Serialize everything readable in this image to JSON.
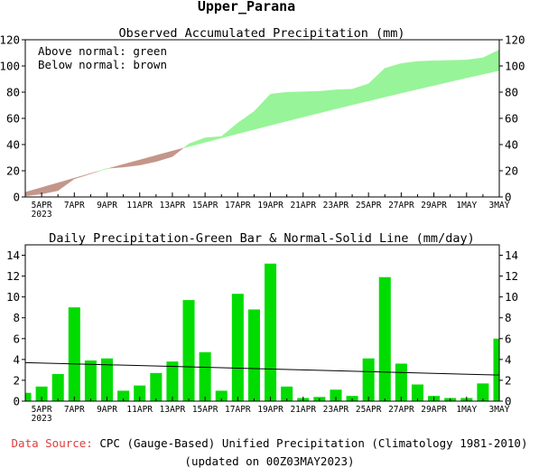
{
  "page_title": "Upper_Parana",
  "colors": {
    "above": "#98f498",
    "below": "#c4968a",
    "bar": "#00dc00",
    "source_label": "#e03c3c"
  },
  "chart_data": [
    {
      "type": "area",
      "title": "Observed Accumulated Precipitation (mm)",
      "legend": [
        "Above normal: green",
        "Below normal: brown"
      ],
      "legend_position": "top-left",
      "ylim": [
        0,
        120
      ],
      "yticks": [
        0,
        20,
        40,
        60,
        80,
        100,
        120
      ],
      "x_tick_labels": [
        "5APR",
        "7APR",
        "9APR",
        "11APR",
        "13APR",
        "15APR",
        "17APR",
        "19APR",
        "21APR",
        "23APR",
        "25APR",
        "27APR",
        "29APR",
        "1MAY",
        "3MAY"
      ],
      "x_first_label_year": "2023",
      "grid": false,
      "days": [
        "4APR",
        "5APR",
        "6APR",
        "7APR",
        "8APR",
        "9APR",
        "10APR",
        "11APR",
        "12APR",
        "13APR",
        "14APR",
        "15APR",
        "16APR",
        "17APR",
        "18APR",
        "19APR",
        "20APR",
        "21APR",
        "22APR",
        "23APR",
        "24APR",
        "25APR",
        "26APR",
        "27APR",
        "28APR",
        "29APR",
        "30APR",
        "1MAY",
        "2MAY",
        "3MAY"
      ],
      "observed": [
        0.8,
        2.2,
        4.8,
        13.8,
        17.7,
        21.8,
        22.8,
        24.3,
        27.0,
        30.8,
        40.5,
        45.2,
        46.2,
        56.5,
        65.3,
        78.5,
        80.0,
        80.3,
        80.7,
        81.8,
        82.3,
        86.4,
        98.3,
        101.9,
        103.5,
        104.0,
        104.3,
        104.6,
        106.3,
        112.3
      ],
      "normal": [
        3.6,
        7.2,
        10.8,
        14.4,
        18.0,
        21.5,
        24.9,
        28.3,
        31.7,
        35.1,
        38.4,
        41.7,
        45.0,
        48.3,
        51.5,
        54.7,
        57.9,
        61.0,
        64.1,
        67.2,
        70.3,
        73.3,
        76.3,
        79.3,
        82.2,
        85.1,
        88.0,
        90.9,
        93.7,
        96.5
      ]
    },
    {
      "type": "bar",
      "title": "Daily Precipitation-Green Bar & Normal-Solid Line (mm/day)",
      "ylim": [
        0,
        15
      ],
      "yticks": [
        0,
        2,
        4,
        6,
        8,
        10,
        12,
        14
      ],
      "x_tick_labels": [
        "5APR",
        "7APR",
        "9APR",
        "11APR",
        "13APR",
        "15APR",
        "17APR",
        "19APR",
        "21APR",
        "23APR",
        "25APR",
        "27APR",
        "29APR",
        "1MAY",
        "3MAY"
      ],
      "x_first_label_year": "2023",
      "grid": false,
      "days": [
        "4APR",
        "5APR",
        "6APR",
        "7APR",
        "8APR",
        "9APR",
        "10APR",
        "11APR",
        "12APR",
        "13APR",
        "14APR",
        "15APR",
        "16APR",
        "17APR",
        "18APR",
        "19APR",
        "20APR",
        "21APR",
        "22APR",
        "23APR",
        "24APR",
        "25APR",
        "26APR",
        "27APR",
        "28APR",
        "29APR",
        "30APR",
        "1MAY",
        "2MAY",
        "3MAY"
      ],
      "values": [
        0.8,
        1.4,
        2.6,
        9.0,
        3.9,
        4.1,
        1.0,
        1.5,
        2.7,
        3.8,
        9.7,
        4.7,
        1.0,
        10.3,
        8.8,
        13.2,
        1.4,
        0.3,
        0.4,
        1.1,
        0.5,
        4.1,
        11.9,
        3.6,
        1.6,
        0.5,
        0.3,
        0.3,
        1.7,
        6.0
      ],
      "normal_line": [
        3.7,
        2.5
      ]
    }
  ],
  "footer": {
    "source_label": "Data Source:",
    "source_text": " CPC (Gauge-Based) Unified Precipitation (Climatology 1981-2010)",
    "updated": "(updated on 00Z03MAY2023)"
  }
}
